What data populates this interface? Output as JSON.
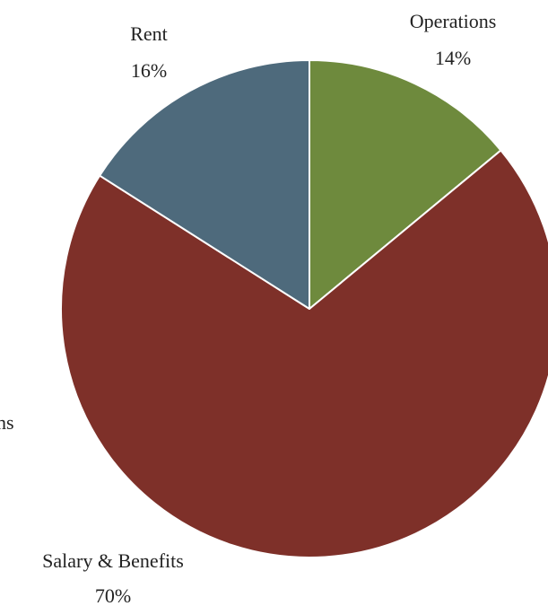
{
  "chart_data": {
    "type": "pie",
    "title": "",
    "slices": [
      {
        "label": "Operations",
        "value": 14,
        "display": "14%",
        "color": "#6e8a3d"
      },
      {
        "label": "Salary & Benefits",
        "value": 70,
        "display": "70%",
        "color": "#7e3029"
      },
      {
        "label": "Rent",
        "value": 16,
        "display": "16%",
        "color": "#4e6a7c"
      }
    ],
    "stray_text": "ns",
    "start_angle": "12 o'clock",
    "direction": "clockwise",
    "slice_border": "#ffffff"
  }
}
